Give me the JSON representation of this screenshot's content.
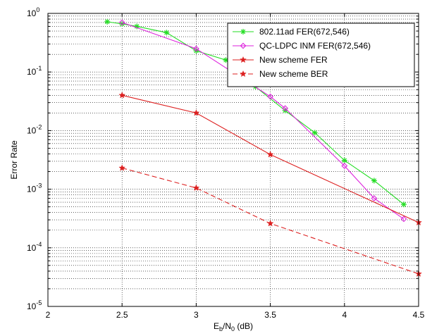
{
  "chart_data": {
    "type": "line",
    "xlabel": {
      "base": "E",
      "sub1": "b",
      "mid": "/N",
      "sub2": "0",
      "tail": " (dB)"
    },
    "ylabel": "Error Rate",
    "xlim": [
      2,
      4.5
    ],
    "ylim": [
      1e-05,
      1
    ],
    "yscale": "log",
    "grid": "on",
    "legend_position": "top-right",
    "x_ticks": [
      {
        "value": 2,
        "label": "2"
      },
      {
        "value": 2.5,
        "label": "2.5"
      },
      {
        "value": 3,
        "label": "3"
      },
      {
        "value": 3.5,
        "label": "3.5"
      },
      {
        "value": 4,
        "label": "4"
      },
      {
        "value": 4.5,
        "label": "4.5"
      }
    ],
    "y_ticks": [
      {
        "value": 1,
        "base": "10",
        "exp": "0"
      },
      {
        "value": 0.1,
        "base": "10",
        "exp": "-1"
      },
      {
        "value": 0.01,
        "base": "10",
        "exp": "-2"
      },
      {
        "value": 0.001,
        "base": "10",
        "exp": "-3"
      },
      {
        "value": 0.0001,
        "base": "10",
        "exp": "-4"
      },
      {
        "value": 1e-05,
        "base": "10",
        "exp": "-5"
      }
    ],
    "series": [
      {
        "name": "802.11ad FER(672,546)",
        "color": "#22dd22",
        "linestyle": "solid",
        "marker": "asterisk",
        "x": [
          2.4,
          2.5,
          2.6,
          2.8,
          3.0,
          3.2,
          3.4,
          3.6,
          3.8,
          4.0,
          4.2,
          4.4
        ],
        "y": [
          0.72,
          0.66,
          0.6,
          0.47,
          0.23,
          0.16,
          0.056,
          0.022,
          0.0092,
          0.0031,
          0.0014,
          0.00055
        ]
      },
      {
        "name": "QC-LDPC INM FER(672,546)",
        "color": "#dd22dd",
        "linestyle": "solid",
        "marker": "diamond",
        "x": [
          2.5,
          3.0,
          3.5,
          3.6,
          4.0,
          4.2,
          4.4
        ],
        "y": [
          0.7,
          0.25,
          0.038,
          0.024,
          0.0025,
          0.0007,
          0.00031
        ]
      },
      {
        "name": "New scheme FER",
        "color": "#dd2020",
        "linestyle": "solid",
        "marker": "pentagram",
        "x": [
          2.5,
          3.0,
          3.5,
          4.5
        ],
        "y": [
          0.04,
          0.02,
          0.0039,
          0.00027
        ]
      },
      {
        "name": "New scheme BER",
        "color": "#dd2020",
        "linestyle": "dashed",
        "marker": "pentagram",
        "x": [
          2.5,
          3.0,
          3.5,
          4.5
        ],
        "y": [
          0.0023,
          0.00105,
          0.00026,
          3.6e-05
        ]
      }
    ]
  }
}
